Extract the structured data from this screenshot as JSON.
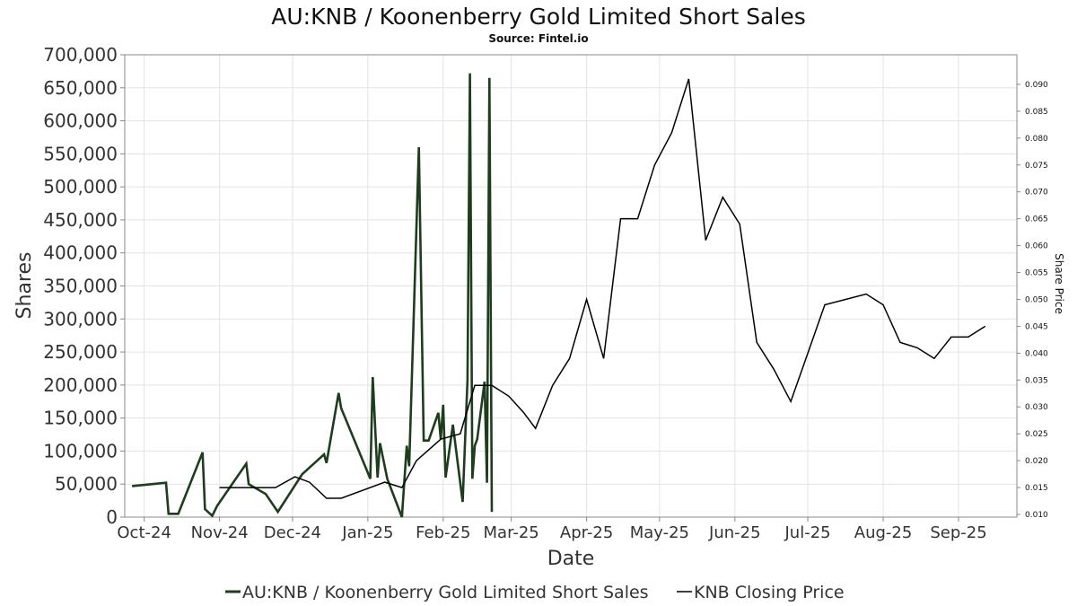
{
  "chart_data": {
    "type": "line",
    "title": "AU:KNB / Koonenberry Gold Limited Short Sales",
    "subtitle": "Source: Fintel.io",
    "xlabel": "Date",
    "ylabel": "Shares",
    "y2label": "Share Price",
    "xlim": [
      "2024-09-23",
      "2025-09-25"
    ],
    "ylim": [
      0,
      700000
    ],
    "y2lim": [
      0.0095,
      0.0955
    ],
    "x_ticks": [
      {
        "date": "2024-10-01",
        "label": "Oct-24"
      },
      {
        "date": "2024-11-01",
        "label": "Nov-24"
      },
      {
        "date": "2024-12-01",
        "label": "Dec-24"
      },
      {
        "date": "2025-01-01",
        "label": "Jan-25"
      },
      {
        "date": "2025-02-01",
        "label": "Feb-25"
      },
      {
        "date": "2025-03-01",
        "label": "Mar-25"
      },
      {
        "date": "2025-04-01",
        "label": "Apr-25"
      },
      {
        "date": "2025-05-01",
        "label": "May-25"
      },
      {
        "date": "2025-06-01",
        "label": "Jun-25"
      },
      {
        "date": "2025-07-01",
        "label": "Jul-25"
      },
      {
        "date": "2025-08-01",
        "label": "Aug-25"
      },
      {
        "date": "2025-09-01",
        "label": "Sep-25"
      }
    ],
    "y_ticks": [
      {
        "value": 0,
        "label": "0"
      },
      {
        "value": 50000,
        "label": "50,000"
      },
      {
        "value": 100000,
        "label": "100,000"
      },
      {
        "value": 150000,
        "label": "150,000"
      },
      {
        "value": 200000,
        "label": "200,000"
      },
      {
        "value": 250000,
        "label": "250,000"
      },
      {
        "value": 300000,
        "label": "300,000"
      },
      {
        "value": 350000,
        "label": "350,000"
      },
      {
        "value": 400000,
        "label": "400,000"
      },
      {
        "value": 450000,
        "label": "450,000"
      },
      {
        "value": 500000,
        "label": "500,000"
      },
      {
        "value": 550000,
        "label": "550,000"
      },
      {
        "value": 600000,
        "label": "600,000"
      },
      {
        "value": 650000,
        "label": "650,000"
      },
      {
        "value": 700000,
        "label": "700,000"
      }
    ],
    "y2_ticks": [
      {
        "value": 0.01,
        "label": "0.010"
      },
      {
        "value": 0.015,
        "label": "0.015"
      },
      {
        "value": 0.02,
        "label": "0.020"
      },
      {
        "value": 0.025,
        "label": "0.025"
      },
      {
        "value": 0.03,
        "label": "0.030"
      },
      {
        "value": 0.035,
        "label": "0.035"
      },
      {
        "value": 0.04,
        "label": "0.040"
      },
      {
        "value": 0.045,
        "label": "0.045"
      },
      {
        "value": 0.05,
        "label": "0.050"
      },
      {
        "value": 0.055,
        "label": "0.055"
      },
      {
        "value": 0.06,
        "label": "0.060"
      },
      {
        "value": 0.065,
        "label": "0.065"
      },
      {
        "value": 0.07,
        "label": "0.070"
      },
      {
        "value": 0.075,
        "label": "0.075"
      },
      {
        "value": 0.08,
        "label": "0.080"
      },
      {
        "value": 0.085,
        "label": "0.085"
      },
      {
        "value": 0.09,
        "label": "0.090"
      }
    ],
    "grid": true,
    "legend_position": "bottom-center",
    "series": [
      {
        "name": "AU:KNB / Koonenberry Gold Limited Short Sales",
        "axis": "left",
        "color": "#1d3d1d",
        "points": [
          [
            "2024-09-26",
            47000
          ],
          [
            "2024-10-10",
            52000
          ],
          [
            "2024-10-11",
            5000
          ],
          [
            "2024-10-15",
            5000
          ],
          [
            "2024-10-25",
            98000
          ],
          [
            "2024-10-26",
            12000
          ],
          [
            "2024-10-29",
            2000
          ],
          [
            "2024-10-31",
            17000
          ],
          [
            "2024-11-12",
            81000
          ],
          [
            "2024-11-13",
            50000
          ],
          [
            "2024-11-20",
            35000
          ],
          [
            "2024-11-25",
            8000
          ],
          [
            "2024-12-05",
            65000
          ],
          [
            "2024-12-14",
            95000
          ],
          [
            "2024-12-15",
            82000
          ],
          [
            "2024-12-20",
            188000
          ],
          [
            "2024-12-21",
            165000
          ],
          [
            "2025-01-02",
            58000
          ],
          [
            "2025-01-03",
            212000
          ],
          [
            "2025-01-05",
            60000
          ],
          [
            "2025-01-06",
            112000
          ],
          [
            "2025-01-09",
            58000
          ],
          [
            "2025-01-15",
            0
          ],
          [
            "2025-01-17",
            108000
          ],
          [
            "2025-01-18",
            77000
          ],
          [
            "2025-01-22",
            560000
          ],
          [
            "2025-01-24",
            116000
          ],
          [
            "2025-01-26",
            116000
          ],
          [
            "2025-01-30",
            158000
          ],
          [
            "2025-01-31",
            118000
          ],
          [
            "2025-02-01",
            170000
          ],
          [
            "2025-02-02",
            60000
          ],
          [
            "2025-02-05",
            140000
          ],
          [
            "2025-02-09",
            23000
          ],
          [
            "2025-02-11",
            208000
          ],
          [
            "2025-02-12",
            672000
          ],
          [
            "2025-02-13",
            58000
          ],
          [
            "2025-02-14",
            108000
          ],
          [
            "2025-02-15",
            118000
          ],
          [
            "2025-02-18",
            205000
          ],
          [
            "2025-02-19",
            52000
          ],
          [
            "2025-02-20",
            665000
          ],
          [
            "2025-02-21",
            8000
          ]
        ]
      },
      {
        "name": "KNB Closing Price",
        "axis": "right",
        "color": "#000000",
        "points": [
          [
            "2024-11-01",
            0.015
          ],
          [
            "2024-11-10",
            0.015
          ],
          [
            "2024-11-24",
            0.015
          ],
          [
            "2024-12-02",
            0.017
          ],
          [
            "2024-12-08",
            0.016
          ],
          [
            "2024-12-15",
            0.013
          ],
          [
            "2024-12-21",
            0.013
          ],
          [
            "2025-01-08",
            0.016
          ],
          [
            "2025-01-15",
            0.015
          ],
          [
            "2025-01-21",
            0.02
          ],
          [
            "2025-01-31",
            0.024
          ],
          [
            "2025-02-08",
            0.025
          ],
          [
            "2025-02-14",
            0.034
          ],
          [
            "2025-02-21",
            0.034
          ],
          [
            "2025-02-28",
            0.032
          ],
          [
            "2025-03-06",
            0.029
          ],
          [
            "2025-03-11",
            0.026
          ],
          [
            "2025-03-18",
            0.034
          ],
          [
            "2025-03-25",
            0.039
          ],
          [
            "2025-04-01",
            0.05
          ],
          [
            "2025-04-08",
            0.039
          ],
          [
            "2025-04-15",
            0.065
          ],
          [
            "2025-04-22",
            0.065
          ],
          [
            "2025-04-29",
            0.075
          ],
          [
            "2025-05-06",
            0.081
          ],
          [
            "2025-05-13",
            0.091
          ],
          [
            "2025-05-20",
            0.061
          ],
          [
            "2025-05-27",
            0.069
          ],
          [
            "2025-06-03",
            0.064
          ],
          [
            "2025-06-10",
            0.042
          ],
          [
            "2025-06-17",
            0.037
          ],
          [
            "2025-06-24",
            0.031
          ],
          [
            "2025-07-01",
            0.04
          ],
          [
            "2025-07-08",
            0.049
          ],
          [
            "2025-07-25",
            0.051
          ],
          [
            "2025-08-01",
            0.049
          ],
          [
            "2025-08-08",
            0.042
          ],
          [
            "2025-08-15",
            0.041
          ],
          [
            "2025-08-22",
            0.039
          ],
          [
            "2025-08-29",
            0.043
          ],
          [
            "2025-09-05",
            0.043
          ],
          [
            "2025-09-12",
            0.045
          ]
        ]
      }
    ]
  }
}
